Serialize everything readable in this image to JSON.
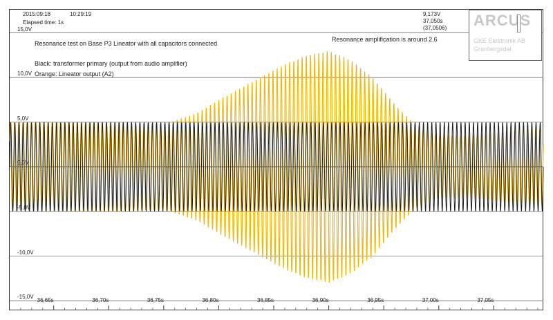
{
  "header": {
    "date": "2015:09:18",
    "time": "10:29:19",
    "elapsed": "Elapsed time: 1s"
  },
  "readout": {
    "voltage": "9,173V",
    "time": "37,050s",
    "window": "(37,0506)"
  },
  "annotations": {
    "title": "Resonance test on Base P3 Lineator with all capacitors connected",
    "black_label": "Black: transformer primary (output from audio amplifier)",
    "orange_label": "Orange: Lineator output (A2)",
    "resonance_note": "Resonance amplification is around 2.6"
  },
  "logo": {
    "title": "ARCUS",
    "line1": "GKE Elektronik AB",
    "line2": "Granbergsdal"
  },
  "colors": {
    "black_trace": "#1f1f1f",
    "orange_trace": "#f2b705",
    "grid": "#777777",
    "zero_line": "#333333"
  },
  "chart_data": {
    "type": "line",
    "title": "",
    "xlabel": "",
    "ylabel": "",
    "xlim": [
      36.61,
      37.095
    ],
    "ylim": [
      -16,
      17.6
    ],
    "x_ticks": [
      36.65,
      36.7,
      36.75,
      36.8,
      36.85,
      36.9,
      36.95,
      37.0,
      37.05
    ],
    "x_tick_labels": [
      "36,65s",
      "36,70s",
      "36,75s",
      "36,80s",
      "36,85s",
      "36,90s",
      "36,95s",
      "37,00s",
      "37,05s"
    ],
    "y_ticks": [
      15,
      10,
      5,
      0,
      -5,
      -10,
      -15
    ],
    "y_tick_labels": [
      "15,0V",
      "10,0V",
      "5,0V",
      "0,0V",
      "-5,0V",
      "-10,0V",
      "-15,0V"
    ],
    "grid": "horizontal",
    "series": [
      {
        "label": "Black: transformer primary (output from audio amplifier)",
        "color": "#1f1f1f",
        "oscillation_cycles": 128,
        "envelope_x": [
          36.61,
          36.7,
          36.8,
          36.9,
          37.0,
          37.095
        ],
        "envelope_v": [
          5.0,
          5.0,
          5.0,
          5.0,
          5.0,
          5.0
        ]
      },
      {
        "label": "Orange: Lineator output (A2)",
        "color": "#f2b705",
        "oscillation_cycles": 128,
        "envelope_x": [
          36.61,
          36.65,
          36.7,
          36.75,
          36.78,
          36.8,
          36.83,
          36.86,
          36.88,
          36.9,
          36.92,
          36.94,
          36.96,
          36.98,
          37.0,
          37.03,
          37.06,
          37.095
        ],
        "envelope_v": [
          5.0,
          5.0,
          5.0,
          4.8,
          6.0,
          7.5,
          9.5,
          11.5,
          12.5,
          13.0,
          12.0,
          10.0,
          7.0,
          4.5,
          3.5,
          3.5,
          4.0,
          4.3
        ]
      }
    ]
  }
}
